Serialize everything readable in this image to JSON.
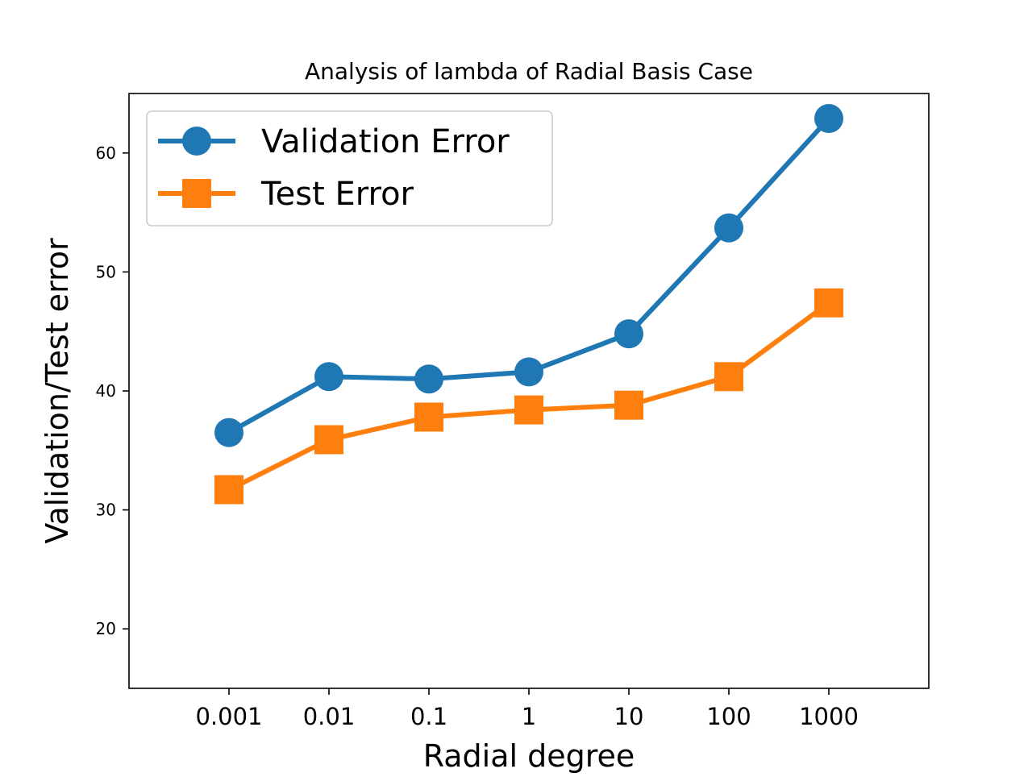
{
  "chart_data": {
    "type": "line",
    "title": "Analysis of lambda of Radial Basis Case",
    "xlabel": "Radial degree",
    "ylabel": "Validation/Test error",
    "categories": [
      "0.001",
      "0.01",
      "0.1",
      "1",
      "10",
      "100",
      "1000"
    ],
    "yticks": [
      20,
      30,
      40,
      50,
      60
    ],
    "ylim": [
      15,
      65
    ],
    "grid": false,
    "legend_position": "top-left",
    "series": [
      {
        "name": "Validation Error",
        "marker": "circle",
        "color": "#1f77b4",
        "values": [
          36.5,
          41.2,
          41.0,
          41.6,
          44.8,
          53.7,
          62.9
        ]
      },
      {
        "name": "Test Error",
        "marker": "square",
        "color": "#ff7f0e",
        "values": [
          31.7,
          35.9,
          37.8,
          38.4,
          38.8,
          41.2,
          47.4
        ]
      }
    ]
  }
}
